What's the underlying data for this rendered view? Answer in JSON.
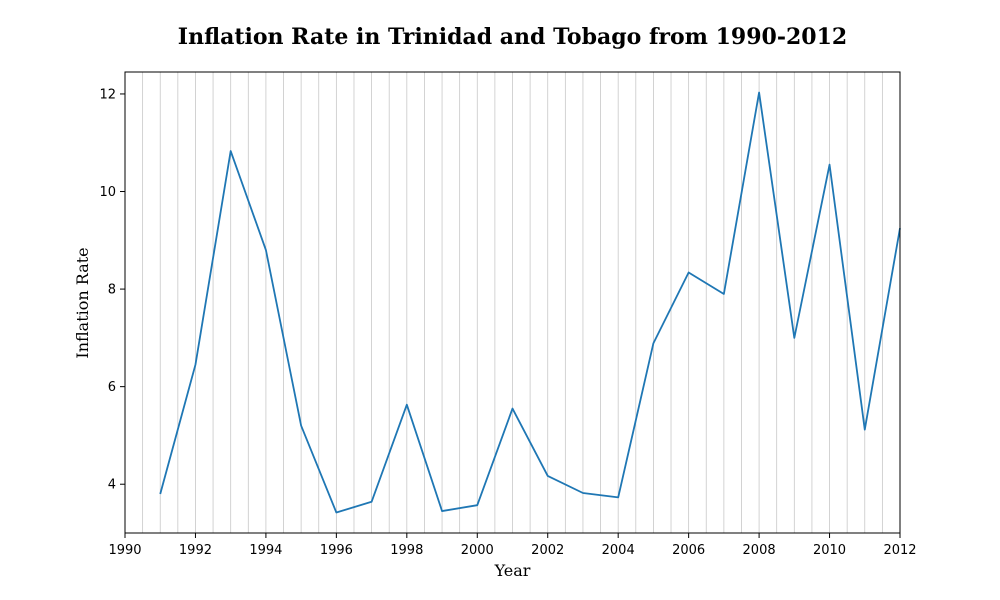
{
  "chart_data": {
    "type": "line",
    "title": "Inflation Rate in Trinidad and Tobago from 1990-2012",
    "xlabel": "Year",
    "ylabel": "Inflation Rate",
    "xlim": [
      1990,
      2012
    ],
    "ylim": [
      3.0,
      12.45
    ],
    "xticks": [
      1990,
      1992,
      1994,
      1996,
      1998,
      2000,
      2002,
      2004,
      2006,
      2008,
      2010,
      2012
    ],
    "xtick_labels": [
      "1990",
      "1992",
      "1994",
      "1996",
      "1998",
      "2000",
      "2002",
      "2004",
      "2006",
      "2008",
      "2010",
      "2012"
    ],
    "yticks": [
      4,
      6,
      8,
      10,
      12
    ],
    "ytick_labels": [
      "4",
      "6",
      "8",
      "10",
      "12"
    ],
    "grid": "vertical",
    "grid_x": [
      1990.5,
      1991,
      1991.5,
      1992,
      1992.5,
      1993,
      1993.5,
      1994,
      1994.5,
      1995,
      1995.5,
      1996,
      1996.5,
      1997,
      1997.5,
      1998,
      1998.5,
      1999,
      1999.5,
      2000,
      2000.5,
      2001,
      2001.5,
      2002,
      2002.5,
      2003,
      2003.5,
      2004,
      2004.5,
      2005,
      2005.5,
      2006,
      2006.5,
      2007,
      2007.5,
      2008,
      2008.5,
      2009,
      2009.5,
      2010,
      2010.5,
      2011,
      2011.5
    ],
    "line_color": "#1f77b4",
    "grid_color": "#c8c8c8",
    "series": [
      {
        "x": [
          1991,
          1992,
          1993,
          1994,
          1995,
          1996,
          1997,
          1998,
          1999,
          2000,
          2001,
          2002,
          2003,
          2004,
          2005,
          2006,
          2007,
          2008,
          2009,
          2010,
          2011,
          2012
        ],
        "values": [
          3.8,
          6.45,
          10.83,
          8.8,
          5.2,
          3.42,
          3.64,
          5.63,
          3.45,
          3.57,
          5.55,
          4.17,
          3.82,
          3.73,
          6.89,
          8.34,
          7.9,
          12.03,
          7.0,
          10.55,
          5.12,
          9.25
        ]
      }
    ]
  }
}
